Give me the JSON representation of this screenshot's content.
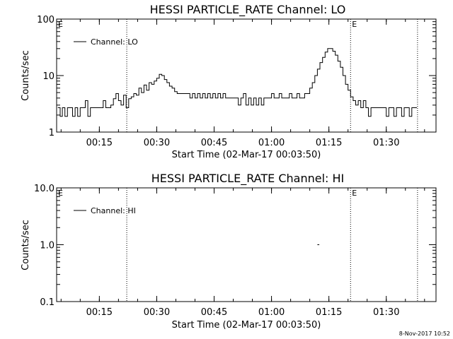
{
  "timestamp": "8-Nov-2017 10:52",
  "chart_data": [
    {
      "type": "line",
      "title": "HESSI PARTICLE_RATE Channel: LO",
      "xlabel": "Start Time (02-Mar-17 00:03:50)",
      "ylabel": "Counts/sec",
      "yscale": "log",
      "ylim": [
        1,
        100
      ],
      "xlim": [
        "00:03:50",
        "01:43:00"
      ],
      "x_ticks": [
        "00:15",
        "00:30",
        "00:45",
        "01:00",
        "01:15",
        "01:30"
      ],
      "y_ticks": [
        "1",
        "10",
        "100"
      ],
      "legend": {
        "label": "Channel: LO",
        "position": "top-left"
      },
      "event_lines": [
        {
          "time": "00:22:10",
          "label": ""
        },
        {
          "time": "01:20:40",
          "label": "E"
        },
        {
          "time": "01:38:10",
          "label": ""
        }
      ],
      "axis_corner_label": "E",
      "series": [
        {
          "name": "Channel: LO",
          "points": [
            [
              "00:04:10",
              2.7
            ],
            [
              "00:04:45",
              1.9
            ],
            [
              "00:05:20",
              2.7
            ],
            [
              "00:06:00",
              1.9
            ],
            [
              "00:06:40",
              2.7
            ],
            [
              "00:07:20",
              2.7
            ],
            [
              "00:08:00",
              1.9
            ],
            [
              "00:08:40",
              2.7
            ],
            [
              "00:09:20",
              1.9
            ],
            [
              "00:10:00",
              2.7
            ],
            [
              "00:10:40",
              2.7
            ],
            [
              "00:11:20",
              3.6
            ],
            [
              "00:12:00",
              1.9
            ],
            [
              "00:12:40",
              2.7
            ],
            [
              "00:13:20",
              2.7
            ],
            [
              "00:14:00",
              2.7
            ],
            [
              "00:14:40",
              2.7
            ],
            [
              "00:15:20",
              2.7
            ],
            [
              "00:16:00",
              3.6
            ],
            [
              "00:16:40",
              2.7
            ],
            [
              "00:17:20",
              2.7
            ],
            [
              "00:18:00",
              3.0
            ],
            [
              "00:18:40",
              3.9
            ],
            [
              "00:19:20",
              4.8
            ],
            [
              "00:20:00",
              3.6
            ],
            [
              "00:20:40",
              3.0
            ],
            [
              "00:21:20",
              4.5
            ],
            [
              "00:22:00",
              2.7
            ],
            [
              "00:22:40",
              3.9
            ],
            [
              "00:23:20",
              4.2
            ],
            [
              "00:24:00",
              4.8
            ],
            [
              "00:24:40",
              4.5
            ],
            [
              "00:25:20",
              6.0
            ],
            [
              "00:26:00",
              5.0
            ],
            [
              "00:26:40",
              6.8
            ],
            [
              "00:27:20",
              5.5
            ],
            [
              "00:28:00",
              7.5
            ],
            [
              "00:28:40",
              7.0
            ],
            [
              "00:29:20",
              8.0
            ],
            [
              "00:30:00",
              9.0
            ],
            [
              "00:30:40",
              10.5
            ],
            [
              "00:31:20",
              10.0
            ],
            [
              "00:32:00",
              8.5
            ],
            [
              "00:32:40",
              7.5
            ],
            [
              "00:33:20",
              6.5
            ],
            [
              "00:34:00",
              6.0
            ],
            [
              "00:34:40",
              5.2
            ],
            [
              "00:35:20",
              4.8
            ],
            [
              "00:36:00",
              4.8
            ],
            [
              "00:37:00",
              4.8
            ],
            [
              "00:38:00",
              4.8
            ],
            [
              "00:38:40",
              4.0
            ],
            [
              "00:39:20",
              4.8
            ],
            [
              "00:40:00",
              4.0
            ],
            [
              "00:40:40",
              4.8
            ],
            [
              "00:41:20",
              4.0
            ],
            [
              "00:42:00",
              4.8
            ],
            [
              "00:42:40",
              4.0
            ],
            [
              "00:43:20",
              4.8
            ],
            [
              "00:44:00",
              4.0
            ],
            [
              "00:44:40",
              4.8
            ],
            [
              "00:45:20",
              4.0
            ],
            [
              "00:46:00",
              4.8
            ],
            [
              "00:46:40",
              4.0
            ],
            [
              "00:47:20",
              4.8
            ],
            [
              "00:48:00",
              4.0
            ],
            [
              "00:48:40",
              4.0
            ],
            [
              "00:49:20",
              4.0
            ],
            [
              "00:50:00",
              4.0
            ],
            [
              "00:50:40",
              4.0
            ],
            [
              "00:51:20",
              3.0
            ],
            [
              "00:52:00",
              4.0
            ],
            [
              "00:52:40",
              4.8
            ],
            [
              "00:53:20",
              3.0
            ],
            [
              "00:54:00",
              4.0
            ],
            [
              "00:54:40",
              3.0
            ],
            [
              "00:55:20",
              4.0
            ],
            [
              "00:56:00",
              3.0
            ],
            [
              "00:56:40",
              4.0
            ],
            [
              "00:57:20",
              3.0
            ],
            [
              "00:58:00",
              4.0
            ],
            [
              "00:58:40",
              4.0
            ],
            [
              "00:59:20",
              4.0
            ],
            [
              "01:00:00",
              4.8
            ],
            [
              "01:00:40",
              4.0
            ],
            [
              "01:01:20",
              4.0
            ],
            [
              "01:02:00",
              4.8
            ],
            [
              "01:02:40",
              4.0
            ],
            [
              "01:03:20",
              4.0
            ],
            [
              "01:04:00",
              4.0
            ],
            [
              "01:04:40",
              4.8
            ],
            [
              "01:05:20",
              4.0
            ],
            [
              "01:06:00",
              4.0
            ],
            [
              "01:06:40",
              4.8
            ],
            [
              "01:07:20",
              4.0
            ],
            [
              "01:08:00",
              4.0
            ],
            [
              "01:08:40",
              4.8
            ],
            [
              "01:09:20",
              4.8
            ],
            [
              "01:10:00",
              6.0
            ],
            [
              "01:10:40",
              7.5
            ],
            [
              "01:11:20",
              10.0
            ],
            [
              "01:12:00",
              13.0
            ],
            [
              "01:12:40",
              17.0
            ],
            [
              "01:13:20",
              21.0
            ],
            [
              "01:14:00",
              26.0
            ],
            [
              "01:14:40",
              30.0
            ],
            [
              "01:15:20",
              30.0
            ],
            [
              "01:16:00",
              27.0
            ],
            [
              "01:16:40",
              23.0
            ],
            [
              "01:17:20",
              18.0
            ],
            [
              "01:18:00",
              14.0
            ],
            [
              "01:18:40",
              10.0
            ],
            [
              "01:19:20",
              7.0
            ],
            [
              "01:20:00",
              5.5
            ],
            [
              "01:20:40",
              4.2
            ],
            [
              "01:21:20",
              3.6
            ],
            [
              "01:22:00",
              3.0
            ],
            [
              "01:22:40",
              3.6
            ],
            [
              "01:23:20",
              2.7
            ],
            [
              "01:24:00",
              3.6
            ],
            [
              "01:24:40",
              2.7
            ],
            [
              "01:25:20",
              1.9
            ],
            [
              "01:26:00",
              2.7
            ],
            [
              "01:26:40",
              2.7
            ],
            [
              "01:27:20",
              2.7
            ],
            [
              "01:28:00",
              2.7
            ],
            [
              "01:28:40",
              2.7
            ],
            [
              "01:29:20",
              2.7
            ],
            [
              "01:30:00",
              1.9
            ],
            [
              "01:30:40",
              2.7
            ],
            [
              "01:31:20",
              2.7
            ],
            [
              "01:32:00",
              1.9
            ],
            [
              "01:32:40",
              2.7
            ],
            [
              "01:33:20",
              2.7
            ],
            [
              "01:34:00",
              1.9
            ],
            [
              "01:34:40",
              2.7
            ],
            [
              "01:35:20",
              2.7
            ],
            [
              "01:36:00",
              1.9
            ],
            [
              "01:36:40",
              2.7
            ],
            [
              "01:37:20",
              2.7
            ],
            [
              "01:38:00",
              2.7
            ]
          ]
        }
      ]
    },
    {
      "type": "line",
      "title": "HESSI PARTICLE_RATE Channel: HI",
      "xlabel": "Start Time (02-Mar-17 00:03:50)",
      "ylabel": "Counts/sec",
      "yscale": "log",
      "ylim": [
        0.1,
        10
      ],
      "xlim": [
        "00:03:50",
        "01:43:00"
      ],
      "x_ticks": [
        "00:15",
        "00:30",
        "00:45",
        "01:00",
        "01:15",
        "01:30"
      ],
      "y_ticks": [
        "0.1",
        "1.0",
        "10.0"
      ],
      "legend": {
        "label": "Channel: HI",
        "position": "top-left"
      },
      "event_lines": [
        {
          "time": "00:22:10",
          "label": ""
        },
        {
          "time": "01:20:40",
          "label": "E"
        },
        {
          "time": "01:38:10",
          "label": ""
        }
      ],
      "axis_corner_label": "E",
      "series": [
        {
          "name": "Channel: HI",
          "points": [
            [
              "01:12:00",
              1.0
            ],
            [
              "01:12:30",
              1.0
            ]
          ]
        }
      ]
    }
  ]
}
